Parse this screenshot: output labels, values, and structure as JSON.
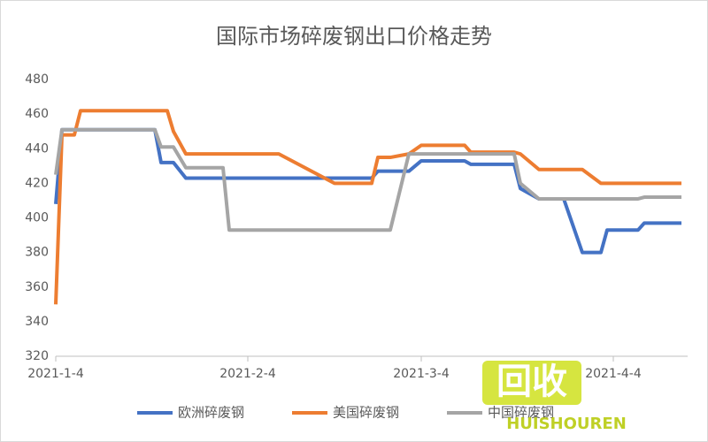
{
  "chart_data": {
    "type": "line",
    "title": "国际市场碎废钢出口价格走势",
    "x": [
      "2021-1-4",
      "2021-1-5",
      "2021-1-7",
      "2021-1-8",
      "2021-1-20",
      "2021-1-21",
      "2021-1-22",
      "2021-1-23",
      "2021-1-25",
      "2021-1-31",
      "2021-2-1",
      "2021-2-9",
      "2021-2-18",
      "2021-2-24",
      "2021-2-25",
      "2021-2-27",
      "2021-3-2",
      "2021-3-4",
      "2021-3-11",
      "2021-3-12",
      "2021-3-19",
      "2021-3-20",
      "2021-3-23",
      "2021-3-27",
      "2021-3-30",
      "2021-4-2",
      "2021-4-3",
      "2021-4-8",
      "2021-4-9",
      "2021-4-15"
    ],
    "series": [
      {
        "name": "欧洲碎废钢",
        "color": "#4472c4",
        "values": [
          408,
          451,
          451,
          451,
          451,
          432,
          432,
          432,
          423,
          423,
          423,
          423,
          423,
          423,
          427,
          427,
          427,
          433,
          433,
          431,
          431,
          417,
          411,
          411,
          380,
          380,
          393,
          393,
          397,
          397
        ]
      },
      {
        "name": "美国碎废钢",
        "color": "#ed7d31",
        "values": [
          350,
          448,
          448,
          462,
          462,
          462,
          462,
          450,
          437,
          437,
          437,
          437,
          420,
          420,
          435,
          435,
          437,
          442,
          442,
          438,
          438,
          437,
          428,
          428,
          428,
          420,
          420,
          420,
          420,
          420
        ]
      },
      {
        "name": "中国碎废钢",
        "color": "#a5a5a5",
        "values": [
          425,
          451,
          451,
          451,
          451,
          441,
          441,
          441,
          429,
          429,
          393,
          393,
          393,
          393,
          393,
          393,
          437,
          437,
          437,
          437,
          437,
          420,
          411,
          411,
          411,
          411,
          411,
          411,
          412,
          412
        ]
      }
    ],
    "xlim": [
      "2021-1-4",
      "2021-4-16"
    ],
    "xticks": [
      "2021-1-4",
      "2021-2-4",
      "2021-3-4",
      "2021-4-4"
    ],
    "ylim": [
      320,
      480
    ],
    "yticks": [
      320,
      340,
      360,
      380,
      400,
      420,
      440,
      460,
      480
    ],
    "grid": false,
    "legend": "bottom",
    "watermark": {
      "icon": "回收",
      "text": "HUISHOUREN"
    }
  }
}
